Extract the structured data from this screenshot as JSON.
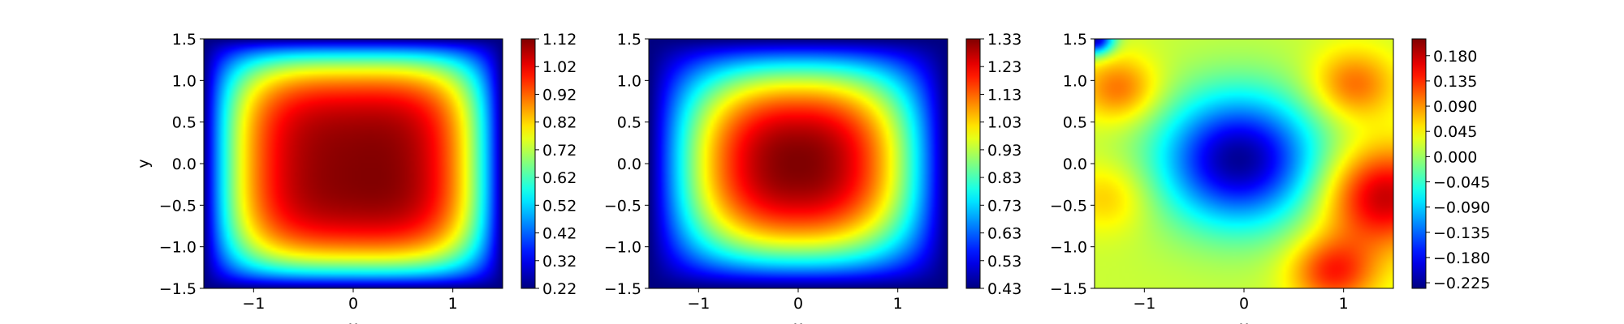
{
  "chart_data": [
    {
      "type": "heatmap",
      "title": "",
      "xlabel": "x",
      "ylabel": "y",
      "xlim": [
        -1.5,
        1.5
      ],
      "ylim": [
        -1.5,
        1.5
      ],
      "xticks": [
        -1,
        0,
        1
      ],
      "xtick_labels": [
        "−1",
        "0",
        "1"
      ],
      "yticks": [
        -1.5,
        -1.0,
        -0.5,
        0.0,
        0.5,
        1.0,
        1.5
      ],
      "ytick_labels": [
        "−1.5",
        "−1.0",
        "−0.5",
        "0.0",
        "0.5",
        "1.0",
        "1.5"
      ],
      "colormap": "jet",
      "colorbar": {
        "range": [
          0.22,
          1.12
        ],
        "ticks": [
          0.22,
          0.32,
          0.42,
          0.52,
          0.62,
          0.72,
          0.82,
          0.92,
          1.02,
          1.12
        ],
        "tick_labels": [
          "0.22",
          "0.32",
          "0.42",
          "0.52",
          "0.62",
          "0.72",
          "0.82",
          "0.92",
          "1.02",
          "1.12"
        ]
      },
      "field": {
        "kind": "plateau",
        "peak": 1.12,
        "peak_center": [
          0.35,
          -0.25
        ],
        "corner_min": 0.22,
        "peak_width": 1.0,
        "edge_sharpness": 3.5
      }
    },
    {
      "type": "heatmap",
      "title": "",
      "xlabel": "x",
      "ylabel": "",
      "xlim": [
        -1.5,
        1.5
      ],
      "ylim": [
        -1.5,
        1.5
      ],
      "xticks": [
        -1,
        0,
        1
      ],
      "xtick_labels": [
        "−1",
        "0",
        "1"
      ],
      "yticks": [
        -1.5,
        -1.0,
        -0.5,
        0.0,
        0.5,
        1.0,
        1.5
      ],
      "ytick_labels": [
        "−1.5",
        "−1.0",
        "−0.5",
        "0.0",
        "0.5",
        "1.0",
        "1.5"
      ],
      "colormap": "jet",
      "colorbar": {
        "range": [
          0.43,
          1.33
        ],
        "ticks": [
          0.43,
          0.53,
          0.63,
          0.73,
          0.83,
          0.93,
          1.03,
          1.13,
          1.23,
          1.33
        ],
        "tick_labels": [
          "0.43",
          "0.53",
          "0.63",
          "0.73",
          "0.83",
          "0.93",
          "1.03",
          "1.13",
          "1.23",
          "1.33"
        ]
      },
      "field": {
        "kind": "dome",
        "peak": 1.33,
        "peak_center": [
          0.0,
          0.0
        ],
        "corner_min": 0.43
      }
    },
    {
      "type": "heatmap",
      "title": "",
      "xlabel": "x",
      "ylabel": "",
      "xlim": [
        -1.5,
        1.5
      ],
      "ylim": [
        -1.5,
        1.5
      ],
      "xticks": [
        -1,
        0,
        1
      ],
      "xtick_labels": [
        "−1",
        "0",
        "1"
      ],
      "yticks": [
        -1.5,
        -1.0,
        -0.5,
        0.0,
        0.5,
        1.0,
        1.5
      ],
      "ytick_labels": [
        "−1.5",
        "−1.0",
        "−0.5",
        "0.0",
        "0.5",
        "1.0",
        "1.5"
      ],
      "colormap": "jet",
      "colorbar": {
        "range": [
          -0.235,
          0.21
        ],
        "ticks": [
          -0.225,
          -0.18,
          -0.135,
          -0.09,
          -0.045,
          0.0,
          0.045,
          0.09,
          0.135,
          0.18
        ],
        "tick_labels": [
          "−0.225",
          "−0.180",
          "−0.135",
          "−0.090",
          "−0.045",
          "0.000",
          "0.045",
          "0.090",
          "0.135",
          "0.180"
        ]
      },
      "field": {
        "kind": "vortex",
        "min": -0.225,
        "min_center": [
          -0.05,
          0.05
        ],
        "max": 0.2,
        "max_center": [
          1.4,
          -0.4
        ],
        "secondary_max": 0.13,
        "secondary_center": [
          -1.25,
          0.9
        ],
        "corner_min": -0.2,
        "corner_min_position": [
          -1.5,
          1.5
        ]
      }
    }
  ]
}
